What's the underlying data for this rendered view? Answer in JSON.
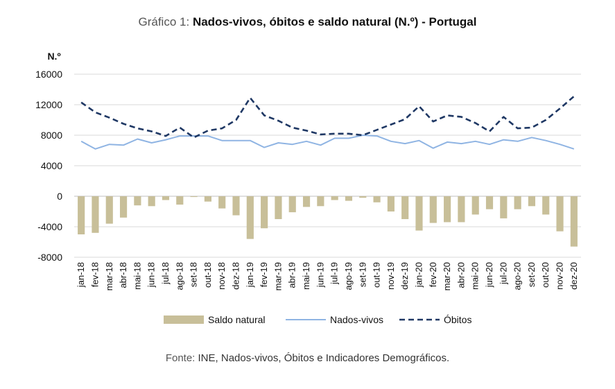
{
  "title": {
    "prefix": "Gráfico 1:",
    "main": "Nados-vivos, óbitos e saldo natural (N.º) - Portugal"
  },
  "source": {
    "prefix": "Fonte:",
    "text": "INE, Nados-vivos, Óbitos e Indicadores Demográficos."
  },
  "colors": {
    "saldo": "#c8bf99",
    "nados": "#8fb4e3",
    "obitos": "#1f3864",
    "grid": "#d9d9d9"
  },
  "chart_data": {
    "type": "bar+line",
    "title": "Nados-vivos, óbitos e saldo natural (N.º) - Portugal",
    "ylabel": "N.º",
    "ylim": [
      -8000,
      16000
    ],
    "yticks": [
      16000,
      12000,
      8000,
      4000,
      0,
      -4000,
      -8000
    ],
    "grid": true,
    "legend_position": "bottom",
    "categories": [
      "jan-18",
      "fev-18",
      "mar-18",
      "abr-18",
      "mai-18",
      "jun-18",
      "jul-18",
      "ago-18",
      "set-18",
      "out-18",
      "nov-18",
      "dez-18",
      "jan-19",
      "fev-19",
      "mar-19",
      "abr-19",
      "mai-19",
      "jun-19",
      "jul-19",
      "ago-19",
      "set-19",
      "out-19",
      "nov-19",
      "dez-19",
      "jan-20",
      "fev-20",
      "mar-20",
      "abr-20",
      "mai-20",
      "jun-20",
      "jul-20",
      "ago-20",
      "set-20",
      "out-20",
      "nov-20",
      "dez-20"
    ],
    "series": [
      {
        "name": "Saldo natural",
        "type": "bar",
        "values": [
          -5000,
          -4800,
          -3600,
          -2800,
          -1200,
          -1300,
          -500,
          -1100,
          -100,
          -700,
          -1600,
          -2500,
          -5600,
          -4200,
          -3000,
          -2100,
          -1400,
          -1300,
          -500,
          -600,
          -200,
          -800,
          -2000,
          -3000,
          -4500,
          -3500,
          -3400,
          -3400,
          -2400,
          -1700,
          -2900,
          -1700,
          -1300,
          -2400,
          -4600,
          -6600
        ]
      },
      {
        "name": "Nados-vivos",
        "type": "line",
        "values": [
          7200,
          6200,
          6800,
          6700,
          7500,
          7000,
          7400,
          7900,
          7900,
          7900,
          7300,
          7300,
          7300,
          6400,
          7000,
          6800,
          7200,
          6700,
          7600,
          7600,
          8000,
          7900,
          7200,
          6900,
          7300,
          6300,
          7100,
          6900,
          7200,
          6800,
          7400,
          7200,
          7700,
          7300,
          6800,
          6200
        ]
      },
      {
        "name": "Óbitos",
        "type": "line",
        "style": "dashed",
        "values": [
          12300,
          11000,
          10300,
          9500,
          8900,
          8500,
          7900,
          9000,
          7700,
          8600,
          8900,
          10000,
          12900,
          10600,
          9900,
          9000,
          8600,
          8100,
          8200,
          8200,
          8000,
          8700,
          9400,
          10100,
          11800,
          9800,
          10600,
          10400,
          9600,
          8500,
          10400,
          8900,
          9000,
          10000,
          11500,
          13100
        ]
      }
    ]
  }
}
